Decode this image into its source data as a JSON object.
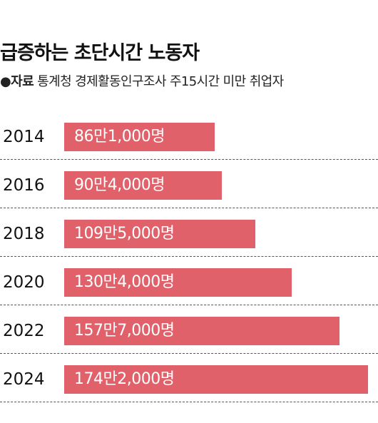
{
  "header": {
    "title": "급증하는 초단시간 노동자",
    "source_marker": "●",
    "source_label": "자료",
    "source_text": "통계청 경제활동인구조사 주15시간 미만 취업자"
  },
  "colors": {
    "bar": "#e0616a",
    "divider": "#555555",
    "text": "#111111"
  },
  "chart_data": {
    "type": "bar",
    "orientation": "horizontal",
    "title": "급증하는 초단시간 노동자",
    "source": "통계청 경제활동인구조사 주15시간 미만 취업자",
    "categories": [
      "2014",
      "2016",
      "2018",
      "2020",
      "2022",
      "2024"
    ],
    "values": [
      861000,
      904000,
      1095000,
      1304000,
      1577000,
      1742000
    ],
    "labels": [
      "86만1,000명",
      "90만4,000명",
      "109만5,000명",
      "130만4,000명",
      "157만7,000명",
      "174만2,000명"
    ],
    "grid": false
  }
}
